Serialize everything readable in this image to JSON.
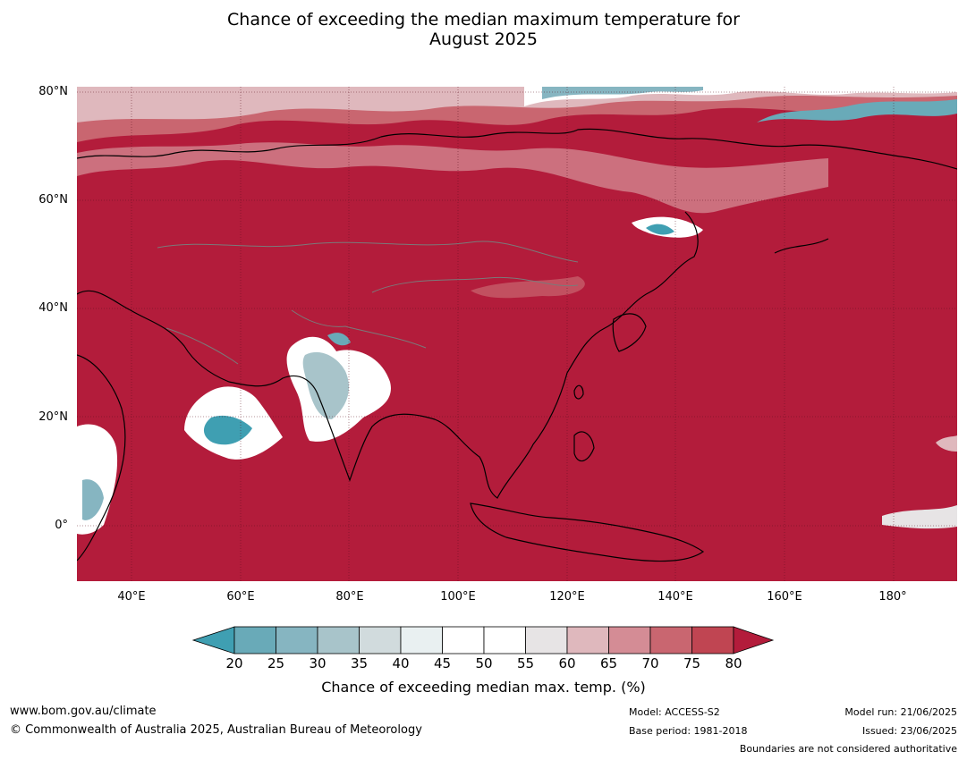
{
  "title": {
    "line1": "Chance of exceeding the median maximum temperature for",
    "line2": "August 2025"
  },
  "map": {
    "projection": "equirectangular",
    "region": "Asia",
    "lat_labels": [
      "80°N",
      "60°N",
      "40°N",
      "20°N",
      "0°"
    ],
    "lon_labels": [
      "40°E",
      "60°E",
      "80°E",
      "100°E",
      "120°E",
      "140°E",
      "160°E",
      "180°"
    ],
    "dominant_category": "80+",
    "background_color": "#b31c3b",
    "coastline_color": "#000000",
    "border_color": "#7a7a7a"
  },
  "colorbar": {
    "ticks": [
      "20",
      "25",
      "30",
      "35",
      "40",
      "45",
      "50",
      "55",
      "60",
      "65",
      "70",
      "75",
      "80"
    ],
    "colors": [
      "#3f9fb2",
      "#69aab8",
      "#86b5c1",
      "#a8c4ca",
      "#d1dbdd",
      "#e9f0f1",
      "#ffffff",
      "#ffffff",
      "#e7e4e5",
      "#dfb8bd",
      "#d48c95",
      "#c96670",
      "#c04552",
      "#b31c3b"
    ],
    "extend": "both",
    "title": "Chance of exceeding median max. temp. (%)"
  },
  "footer": {
    "url": "www.bom.gov.au/climate",
    "copyright": "© Commonwealth of Australia 2025, Australian Bureau of Meteorology",
    "model": "Model: ACCESS-S2",
    "base_period": "Base period: 1981-2018",
    "model_run": "Model run: 21/06/2025",
    "issued": "Issued: 23/06/2025",
    "disclaimer": "Boundaries are not considered authoritative"
  }
}
